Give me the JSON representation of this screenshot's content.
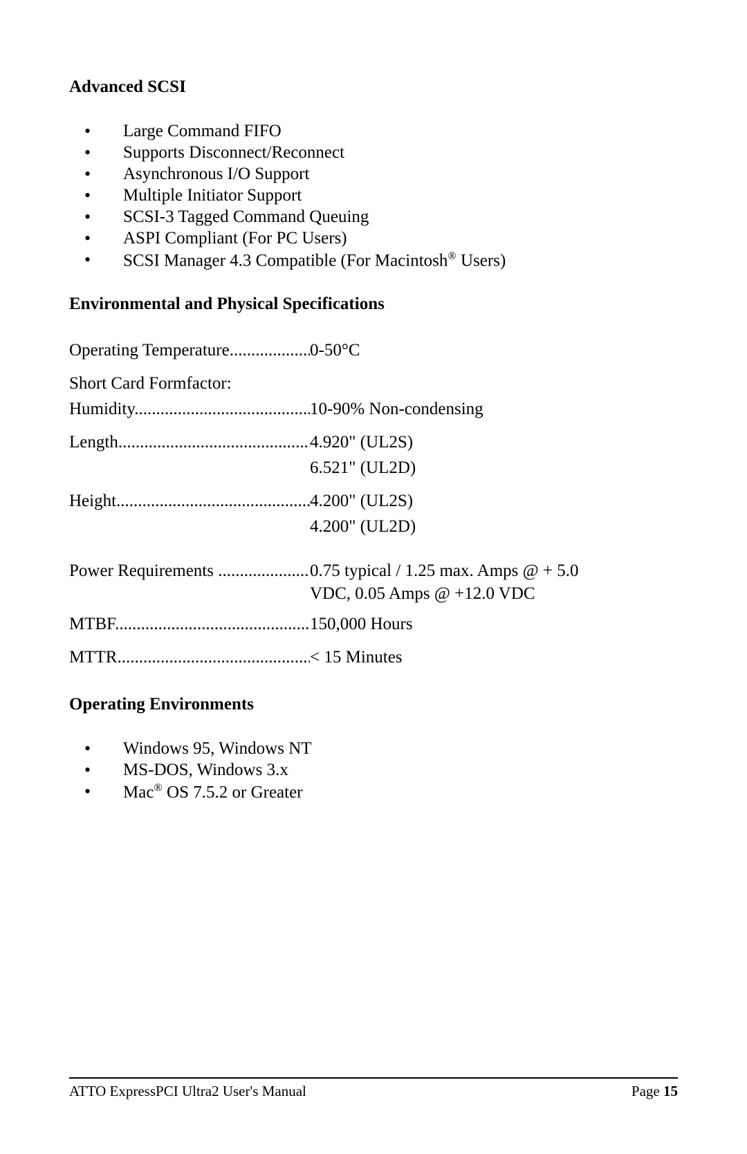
{
  "sections": {
    "advanced_scsi": {
      "heading": "Advanced SCSI",
      "items": [
        "Large Command FIFO",
        "Supports Disconnect/Reconnect",
        "Asynchronous I/O Support",
        "Multiple Initiator Support",
        "SCSI-3 Tagged Command Queuing",
        "ASPI Compliant (For PC Users)"
      ],
      "item_mac_pre": "SCSI Manager 4.3 Compatible (For Macintosh",
      "item_mac_sup": "®",
      "item_mac_post": " Users)"
    },
    "env_phys": {
      "heading": "Environmental and Physical Specifications",
      "rows": {
        "op_temp_label": "Operating Temperature",
        "op_temp_value": "0-50°C",
        "formfactor": "Short Card Formfactor:",
        "humidity_label": "Humidity",
        "humidity_value": "10-90% Non-condensing",
        "length_label": "Length",
        "length_value1": "4.920\" (UL2S)",
        "length_value2": "6.521\" (UL2D)",
        "height_label": "Height",
        "height_value1": "4.200\" (UL2S)",
        "height_value2": "4.200\" (UL2D)",
        "power_label": "Power Requirements ",
        "power_value1": "0.75 typical / 1.25 max. Amps @ + 5.0",
        "power_value2": "VDC, 0.05 Amps @ +12.0 VDC",
        "mtbf_label": "MTBF",
        "mtbf_value": "150,000 Hours",
        "mttr_label": "MTTR",
        "mttr_value": "< 15 Minutes"
      }
    },
    "op_env": {
      "heading": "Operating Environments",
      "items": [
        "Windows 95, Windows NT",
        "MS-DOS, Windows 3.x"
      ],
      "item_mac_pre": "Mac",
      "item_mac_sup": "®",
      "item_mac_post": " OS 7.5.2 or Greater"
    }
  },
  "footer": {
    "left": "ATTO ExpressPCI Ultra2 User's Manual",
    "right_label": "Page ",
    "right_num": "15"
  }
}
